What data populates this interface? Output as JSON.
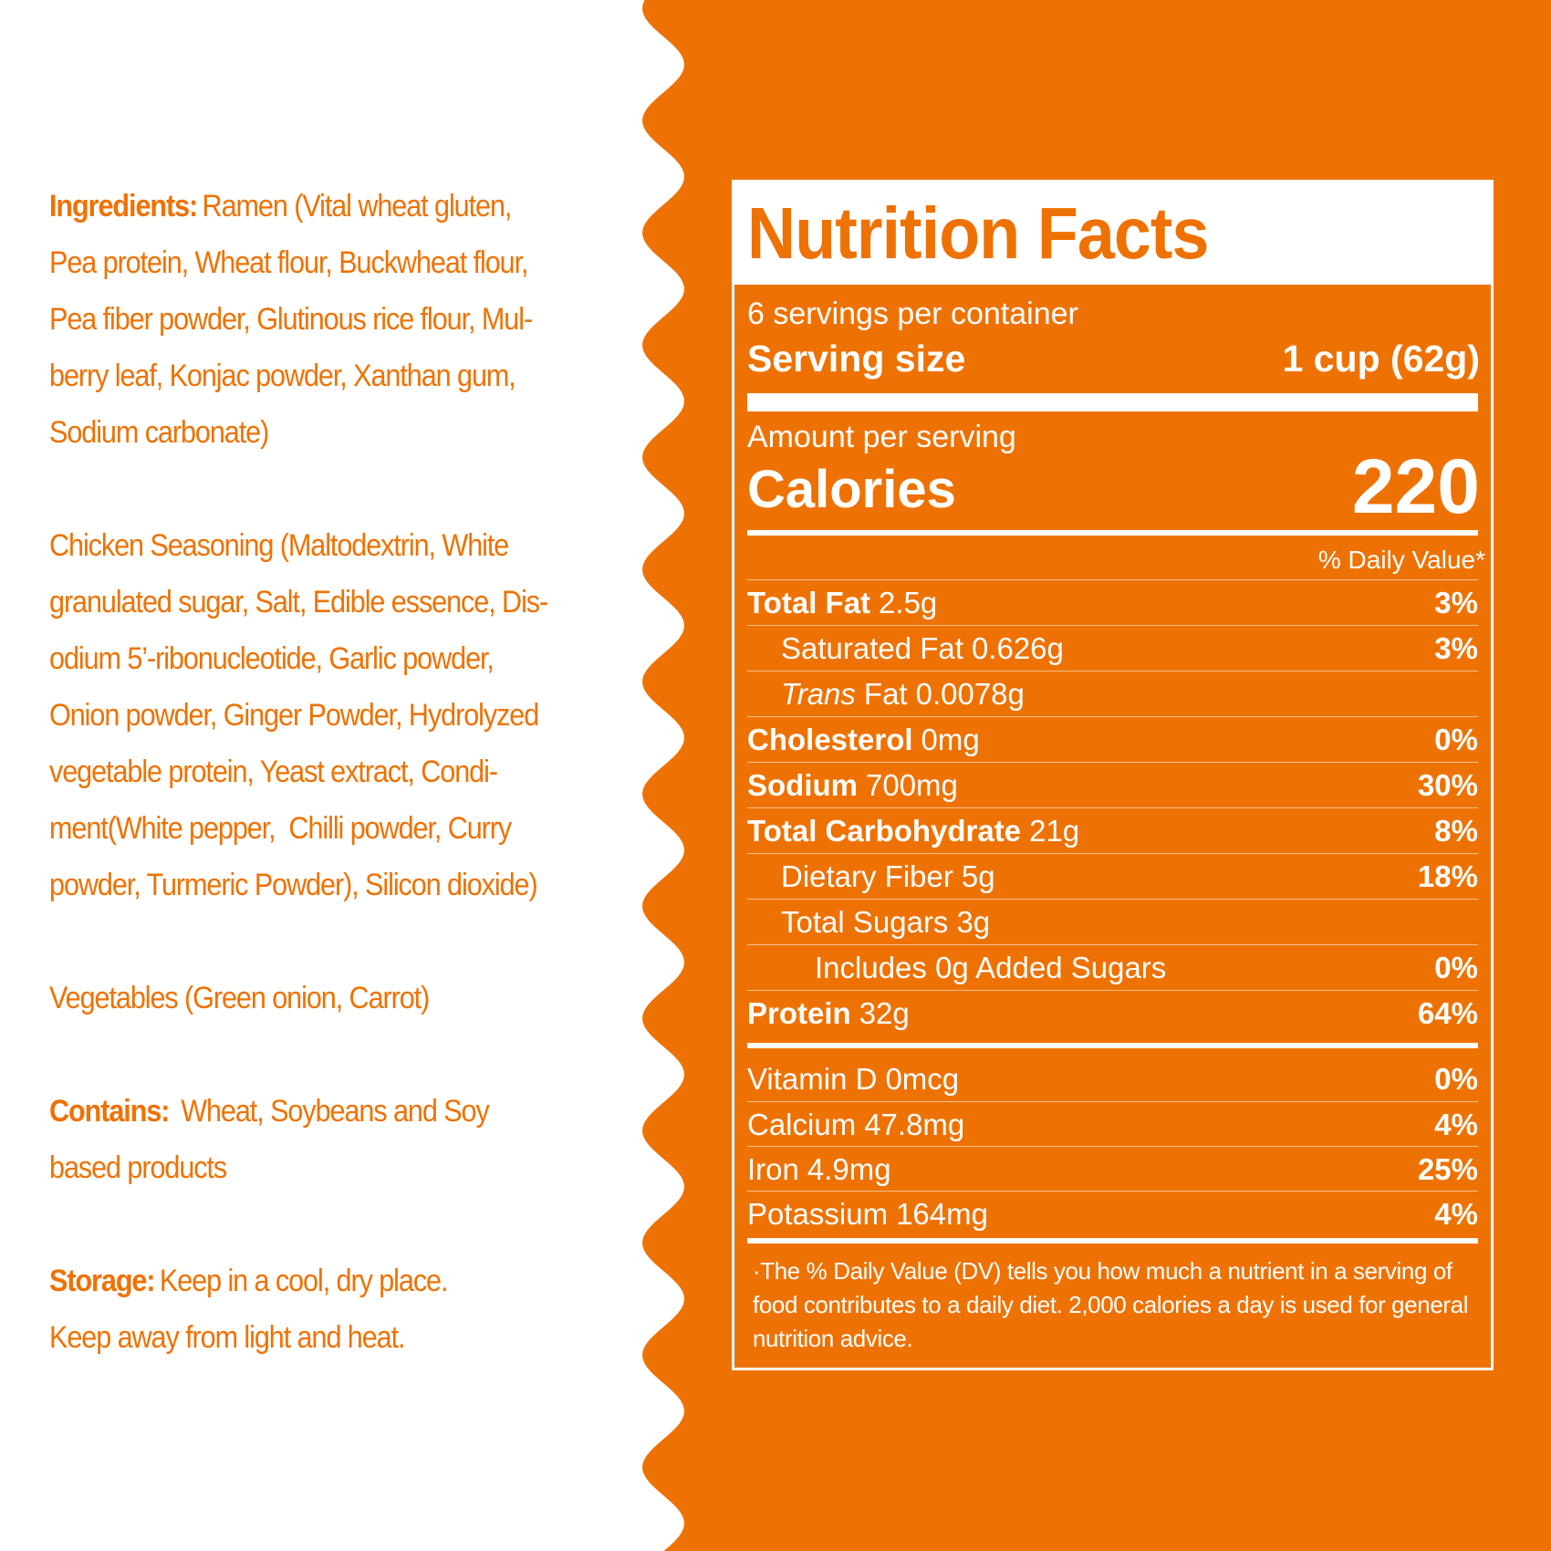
{
  "ingredients": {
    "paragraphs": [
      {
        "label": "Ingredients:",
        "lines": [
          "Ramen (Vital wheat gluten,",
          "Pea protein, Wheat flour, Buckwheat flour,",
          "Pea fiber powder, Glutinous rice flour, Mul-",
          "berry leaf, Konjac powder, Xanthan gum,",
          "Sodium carbonate)"
        ]
      },
      {
        "lines": [
          "Chicken Seasoning (Maltodextrin, White",
          "granulated sugar, Salt, Edible essence, Dis-",
          "odium 5’-ribonucleotide, Garlic powder,",
          "Onion powder, Ginger Powder, Hydrolyzed",
          "vegetable protein, Yeast extract, Condi-",
          "ment(White pepper,  Chilli powder, Curry",
          "powder, Turmeric Powder), Silicon dioxide)"
        ]
      },
      {
        "lines": [
          "Vegetables (Green onion, Carrot)"
        ]
      },
      {
        "label": "Contains:",
        "lines": [
          " Wheat, Soybeans and Soy",
          "based products"
        ]
      },
      {
        "label": "Storage:",
        "lines": [
          "Keep in a cool, dry place.",
          "Keep away from light and heat."
        ]
      }
    ]
  },
  "nutrition_facts": {
    "title": "Nutrition Facts",
    "servings": "6 servings per container",
    "serving_size_label": "Serving size",
    "serving_size_value": "1 cup (62g)",
    "amount_per_serving": "Amount per serving",
    "calories_label": "Calories",
    "calories_value": 220,
    "daily_value_header": "% Daily Value*",
    "nutrients": [
      {
        "name": "Total Fat",
        "amount": "2.5g",
        "dv": "3%",
        "level": 0
      },
      {
        "name": "Saturated Fat",
        "amount": "0.626g",
        "dv": "3%",
        "level": 1
      },
      {
        "name_italic": "Trans",
        "name": "Fat",
        "amount": "0.0078g",
        "level": 1
      },
      {
        "name": "Cholesterol",
        "amount": "0mg",
        "dv": "0%",
        "level": 0
      },
      {
        "name": "Sodium",
        "amount": "700mg",
        "dv": "30%",
        "level": 0
      },
      {
        "name": "Total Carbohydrate",
        "amount": "21g",
        "dv": "8%",
        "level": 0
      },
      {
        "name": "Dietary Fiber",
        "amount": "5g",
        "dv": "18%",
        "level": 1
      },
      {
        "name": "Total Sugars",
        "amount": "3g",
        "level": 1
      },
      {
        "name": "Includes 0g Added Sugars",
        "dv": "0%",
        "level": 2
      },
      {
        "name": "Protein",
        "amount": "32g",
        "dv": "64%",
        "level": 0
      }
    ],
    "vitamins": [
      {
        "name": "Vitamin D",
        "amount": "0mcg",
        "dv": "0%"
      },
      {
        "name": "Calcium",
        "amount": "47.8mg",
        "dv": "4%"
      },
      {
        "name": "Iron",
        "amount": "4.9mg",
        "dv": "25%"
      },
      {
        "name": "Potassium",
        "amount": "164mg",
        "dv": "4%"
      }
    ],
    "footnote": "·The % Daily Value  (DV) tells you how much a nutrient in a serving of food contributes to a daily diet. 2,000 calories a day is used for general nutrition advice."
  }
}
